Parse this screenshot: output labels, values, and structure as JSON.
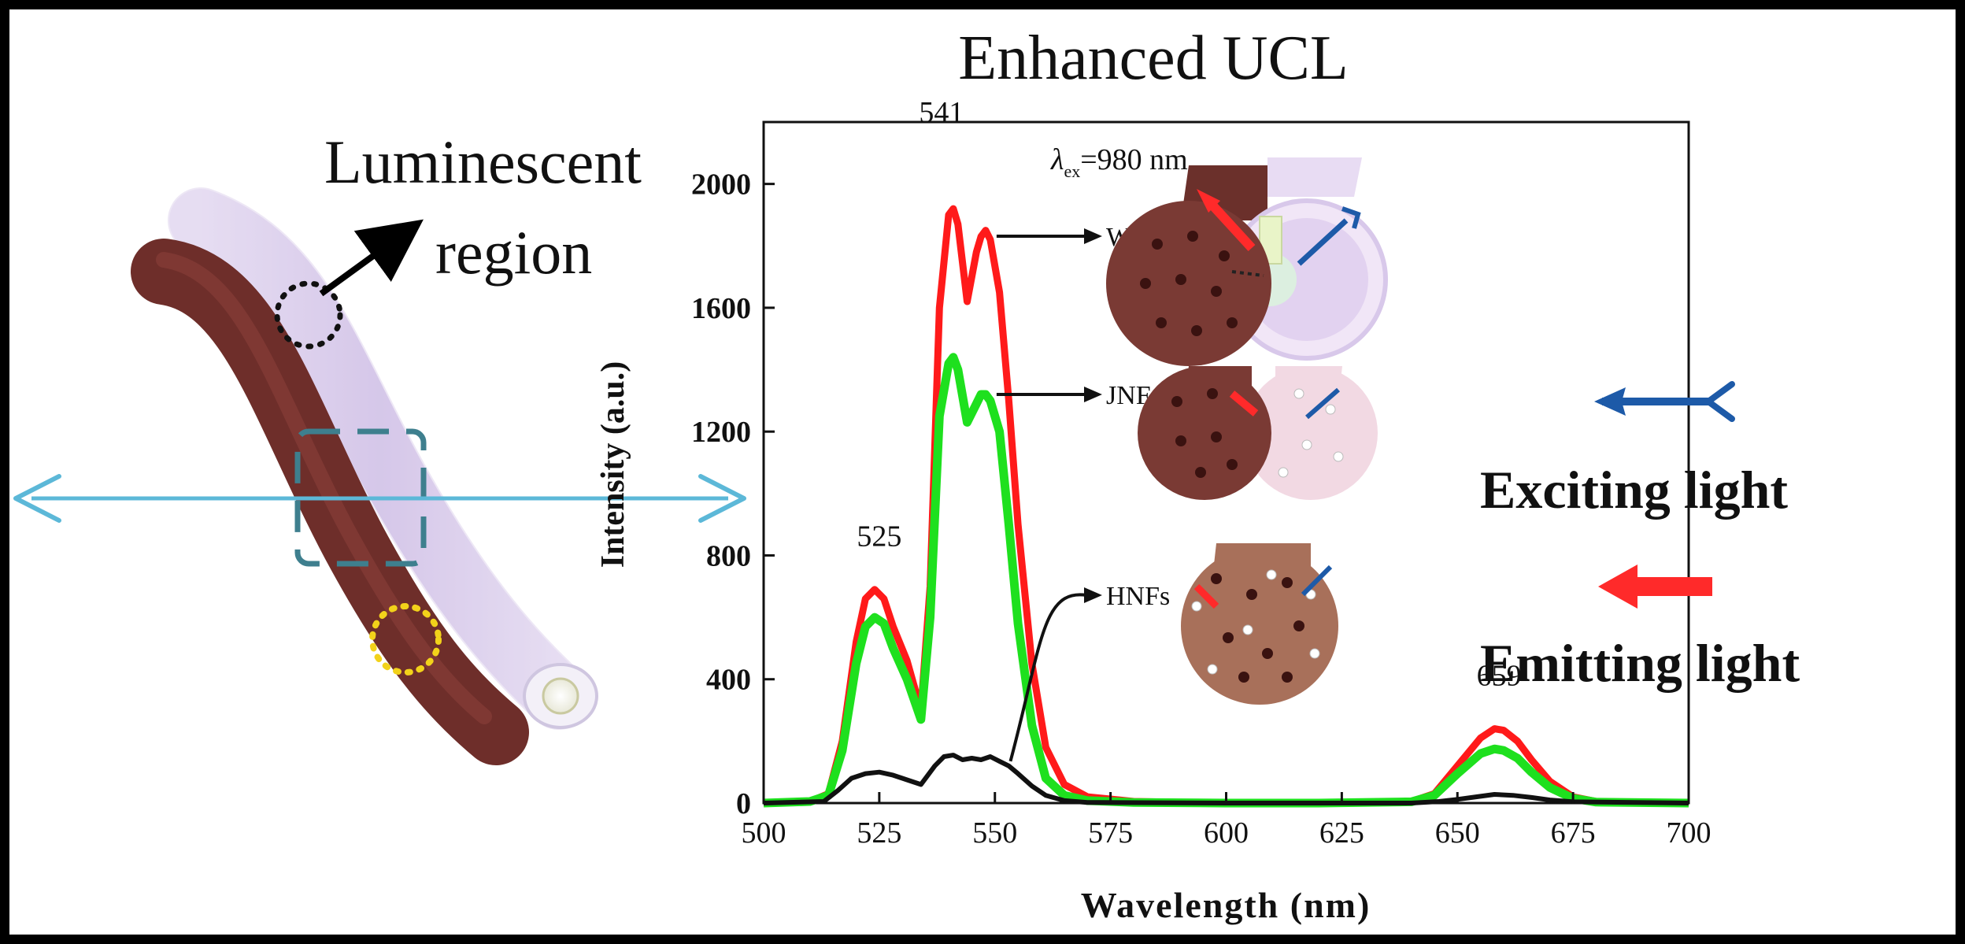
{
  "page": {
    "title": "Enhanced UCL",
    "left_label_line1": "Luminescent",
    "left_label_line2": "region",
    "legend_exciting": "Exciting light",
    "legend_emitting": "Emitting light"
  },
  "colors": {
    "wjnfs": "#ff1a1a",
    "jnfs": "#1ee01e",
    "hnfs": "#111111",
    "fiber_brown": "#6e2e2a",
    "fiber_tube": "#e0d4ef",
    "exciting_arrow": "#1d5aa8",
    "emitting_arrow": "#ff2a2a",
    "probe_arrow": "#5cb8d8"
  },
  "icons": {
    "exciting": "blue-arrow-left-icon",
    "emitting": "red-arrow-left-icon"
  },
  "chart_data": {
    "type": "line",
    "title": "Enhanced UCL",
    "xlabel": "Wavelength (nm)",
    "ylabel": "Intensity (a.u.)",
    "xlim": [
      500,
      700
    ],
    "ylim": [
      0,
      2200
    ],
    "xticks": [
      500,
      525,
      550,
      575,
      600,
      625,
      650,
      675,
      700
    ],
    "yticks": [
      0,
      400,
      800,
      1200,
      1600,
      2000
    ],
    "annotation_excitation": "=980 nm",
    "excitation_symbol": "λ",
    "excitation_subscript": "ex",
    "peak_labels": [
      {
        "text": "525",
        "x": 525,
        "y": 690
      },
      {
        "text": "541",
        "x": 541,
        "y": 1920
      },
      {
        "text": "659",
        "x": 659,
        "y": 240
      }
    ],
    "series": [
      {
        "name": "WJNFs-2.0",
        "x": [
          500,
          510,
          514,
          517,
          520,
          522,
          524,
          526,
          528,
          531,
          534,
          536,
          538,
          540,
          541,
          542,
          544,
          546,
          547,
          548,
          549,
          551,
          553,
          555,
          558,
          561,
          565,
          570,
          580,
          600,
          620,
          640,
          645,
          650,
          655,
          658,
          660,
          663,
          666,
          670,
          675,
          680,
          700
        ],
        "y": [
          0,
          5,
          30,
          200,
          520,
          660,
          690,
          660,
          570,
          460,
          300,
          700,
          1600,
          1900,
          1920,
          1870,
          1620,
          1780,
          1830,
          1850,
          1820,
          1650,
          1300,
          900,
          450,
          180,
          60,
          20,
          5,
          0,
          0,
          5,
          30,
          120,
          210,
          240,
          235,
          200,
          140,
          70,
          20,
          5,
          0
        ]
      },
      {
        "name": "JNFs",
        "x": [
          500,
          510,
          514,
          517,
          520,
          522,
          524,
          526,
          528,
          531,
          534,
          536,
          538,
          540,
          541,
          542,
          544,
          546,
          547,
          548,
          549,
          551,
          553,
          555,
          558,
          561,
          565,
          570,
          580,
          600,
          620,
          640,
          645,
          650,
          655,
          658,
          660,
          663,
          666,
          670,
          675,
          680,
          700
        ],
        "y": [
          0,
          5,
          25,
          170,
          450,
          570,
          600,
          580,
          500,
          400,
          270,
          600,
          1250,
          1420,
          1440,
          1400,
          1230,
          1290,
          1320,
          1320,
          1300,
          1200,
          900,
          580,
          250,
          80,
          25,
          8,
          2,
          0,
          0,
          4,
          25,
          95,
          160,
          175,
          170,
          145,
          100,
          50,
          15,
          3,
          0
        ]
      },
      {
        "name": "HNFs",
        "x": [
          500,
          513,
          516,
          519,
          522,
          525,
          528,
          531,
          534,
          537,
          539,
          541,
          543,
          545,
          547,
          549,
          551,
          553,
          555,
          558,
          561,
          565,
          570,
          600,
          640,
          646,
          650,
          655,
          658,
          662,
          666,
          670,
          675,
          700
        ],
        "y": [
          0,
          5,
          40,
          80,
          95,
          100,
          90,
          75,
          60,
          120,
          150,
          155,
          140,
          145,
          140,
          150,
          135,
          120,
          95,
          55,
          25,
          8,
          2,
          0,
          0,
          5,
          12,
          22,
          28,
          25,
          18,
          10,
          4,
          0
        ]
      }
    ]
  }
}
